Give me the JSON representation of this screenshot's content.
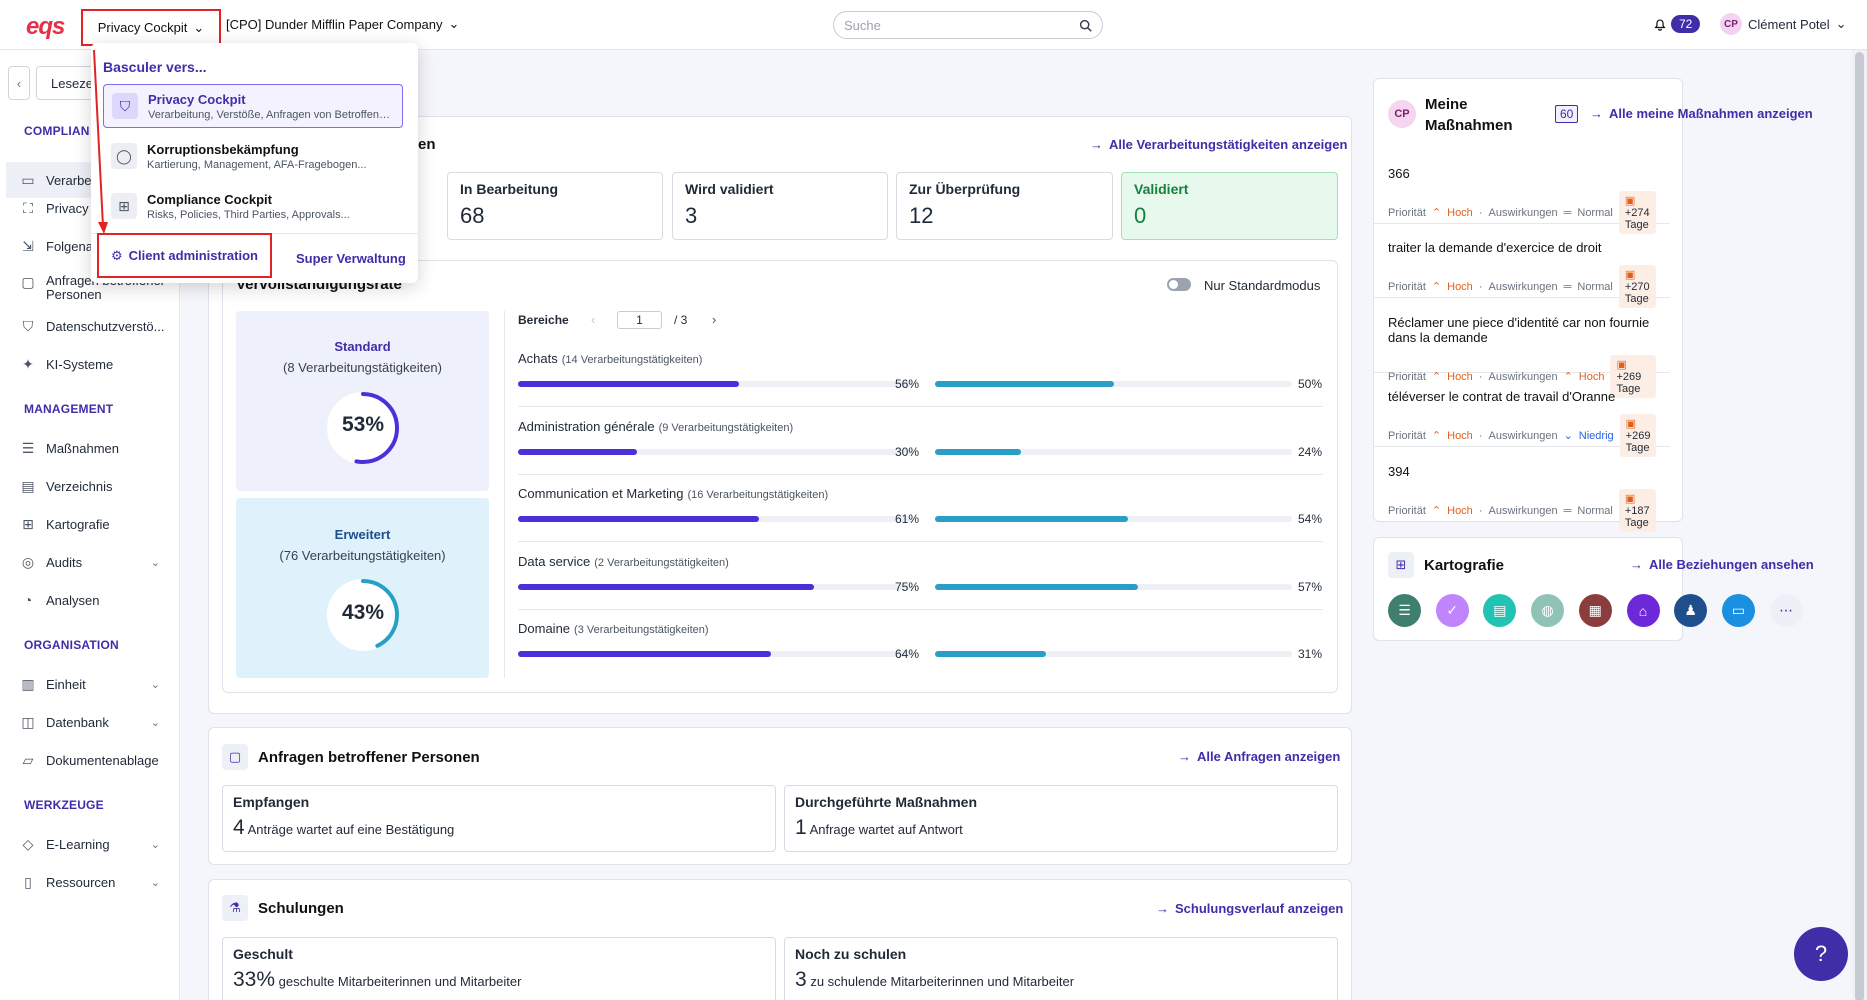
{
  "header": {
    "logo": "eqs",
    "app_switch_label": "Privacy Cockpit",
    "company": "[CPO] Dunder Mifflin Paper Company",
    "search_placeholder": "Suche",
    "notifications_count": "72",
    "user_initials": "CP",
    "user_name": "Clément Potel"
  },
  "sidebar": {
    "bookmark_label": "Leseze",
    "sections": [
      {
        "title": "COMPLIAN"
      },
      {
        "title": "MANAGEMENT"
      },
      {
        "title": "ORGANISATION"
      },
      {
        "title": "WERKZEUGE"
      }
    ],
    "compliance_items": [
      "Verarbe",
      "Privacy",
      "Folgena",
      "Anfragen betroffener Personen",
      "Datenschutzverstö...",
      "KI-Systeme"
    ],
    "management_items": [
      "Maßnahmen",
      "Verzeichnis",
      "Kartografie",
      "Audits",
      "Analysen"
    ],
    "organisation_items": [
      "Einheit",
      "Datenbank",
      "Dokumentenablage"
    ],
    "tools_items": [
      "E-Learning",
      "Ressourcen"
    ]
  },
  "dropdown": {
    "heading": "Basculer vers...",
    "items": [
      {
        "name": "Privacy Cockpit",
        "desc": "Verarbeitung, Verstöße, Anfragen von Betroffenen..."
      },
      {
        "name": "Korruptionsbekämpfung",
        "desc": "Kartierung, Management, AFA-Fragebogen..."
      },
      {
        "name": "Compliance Cockpit",
        "desc": "Risks, Policies, Third Parties, Approvals..."
      }
    ],
    "client_admin": "Client administration",
    "super_admin": "Super Verwaltung"
  },
  "processing": {
    "title_fragment": "en",
    "link": "Alle Verarbeitungstätigkeiten anzeigen",
    "stats": [
      {
        "label": "In Bearbeitung",
        "value": "68"
      },
      {
        "label": "Wird validiert",
        "value": "3"
      },
      {
        "label": "Zur Überprüfung",
        "value": "12"
      },
      {
        "label": "Validiert",
        "value": "0"
      }
    ]
  },
  "completeness": {
    "title": "Vervollständigungsrate",
    "toggle_label": "Nur Standardmodus",
    "standard": {
      "title": "Standard",
      "sub": "(8 Verarbeitungstätigkeiten)",
      "pct": 53,
      "pct_label": "53%"
    },
    "extended": {
      "title": "Erweitert",
      "sub": "(76 Verarbeitungstätigkeiten)",
      "pct": 43,
      "pct_label": "43%"
    },
    "areas_label": "Bereiche",
    "page": "1",
    "page_total": "/ 3",
    "areas": [
      {
        "name": "Achats",
        "count": "(14 Verarbeitungstätigkeiten)",
        "std": 56,
        "std_label": "56%",
        "ext": 50,
        "ext_label": "50%"
      },
      {
        "name": "Administration générale",
        "count": "(9 Verarbeitungstätigkeiten)",
        "std": 30,
        "std_label": "30%",
        "ext": 24,
        "ext_label": "24%"
      },
      {
        "name": "Communication et Marketing",
        "count": "(16 Verarbeitungstätigkeiten)",
        "std": 61,
        "std_label": "61%",
        "ext": 54,
        "ext_label": "54%"
      },
      {
        "name": "Data service",
        "count": "(2 Verarbeitungstätigkeiten)",
        "std": 75,
        "std_label": "75%",
        "ext": 57,
        "ext_label": "57%"
      },
      {
        "name": "Domaine",
        "count": "(3 Verarbeitungstätigkeiten)",
        "std": 64,
        "std_label": "64%",
        "ext": 31,
        "ext_label": "31%"
      }
    ]
  },
  "requests": {
    "title": "Anfragen betroffener Personen",
    "link": "Alle Anfragen anzeigen",
    "received_label": "Empfangen",
    "received_value": "4",
    "received_text": "Anträge wartet auf eine Bestätigung",
    "done_label": "Durchgeführte Maßnahmen",
    "done_value": "1",
    "done_text": "Anfrage wartet auf Antwort"
  },
  "trainings": {
    "title": "Schulungen",
    "link": "Schulungsverlauf anzeigen",
    "trained_label": "Geschult",
    "trained_value": "33%",
    "trained_text": "geschulte Mitarbeiterinnen und Mitarbeiter",
    "todo_label": "Noch zu schulen",
    "todo_value": "3",
    "todo_text": "zu schulende Mitarbeiterinnen und Mitarbeiter"
  },
  "my_measures": {
    "initials": "CP",
    "title": "Meine Maßnahmen",
    "count": "60",
    "link": "Alle meine Maßnahmen anzeigen",
    "priority_label": "Priorität",
    "impact_label": "Auswirkungen",
    "tasks": [
      {
        "title": "366",
        "priority": "Hoch",
        "impact": "Normal",
        "days": "+274 Tage"
      },
      {
        "title": "traiter la demande d'exercice de droit",
        "priority": "Hoch",
        "impact": "Normal",
        "days": "+270 Tage"
      },
      {
        "title": "Réclamer une piece d'identité car non fournie dans la demande",
        "priority": "Hoch",
        "impact": "Hoch",
        "days": "+269 Tage"
      },
      {
        "title": "téléverser le contrat de travail d'Oranne",
        "priority": "Hoch",
        "impact": "Niedrig",
        "days": "+269 Tage"
      },
      {
        "title": "394",
        "priority": "Hoch",
        "impact": "Normal",
        "days": "+187 Tage"
      }
    ]
  },
  "cartography": {
    "title": "Kartografie",
    "link": "Alle Beziehungen ansehen",
    "icons": [
      {
        "name": "list-icon",
        "color": "#3f7f6e",
        "glyph": "☰"
      },
      {
        "name": "shield-check-icon",
        "color": "#c084fc",
        "glyph": "✓"
      },
      {
        "name": "document-icon",
        "color": "#22c3b5",
        "glyph": "▤"
      },
      {
        "name": "database-icon",
        "color": "#8fc3b5",
        "glyph": "◍"
      },
      {
        "name": "report-icon",
        "color": "#8b3d3d",
        "glyph": "▦"
      },
      {
        "name": "bank-icon",
        "color": "#6d28d9",
        "glyph": "⌂"
      },
      {
        "name": "group-icon",
        "color": "#1e4e8c",
        "glyph": "♟"
      },
      {
        "name": "window-icon",
        "color": "#1d8fe0",
        "glyph": "▭"
      },
      {
        "name": "more-icon",
        "color": "#eef0f7",
        "glyph": "⋯"
      }
    ]
  }
}
